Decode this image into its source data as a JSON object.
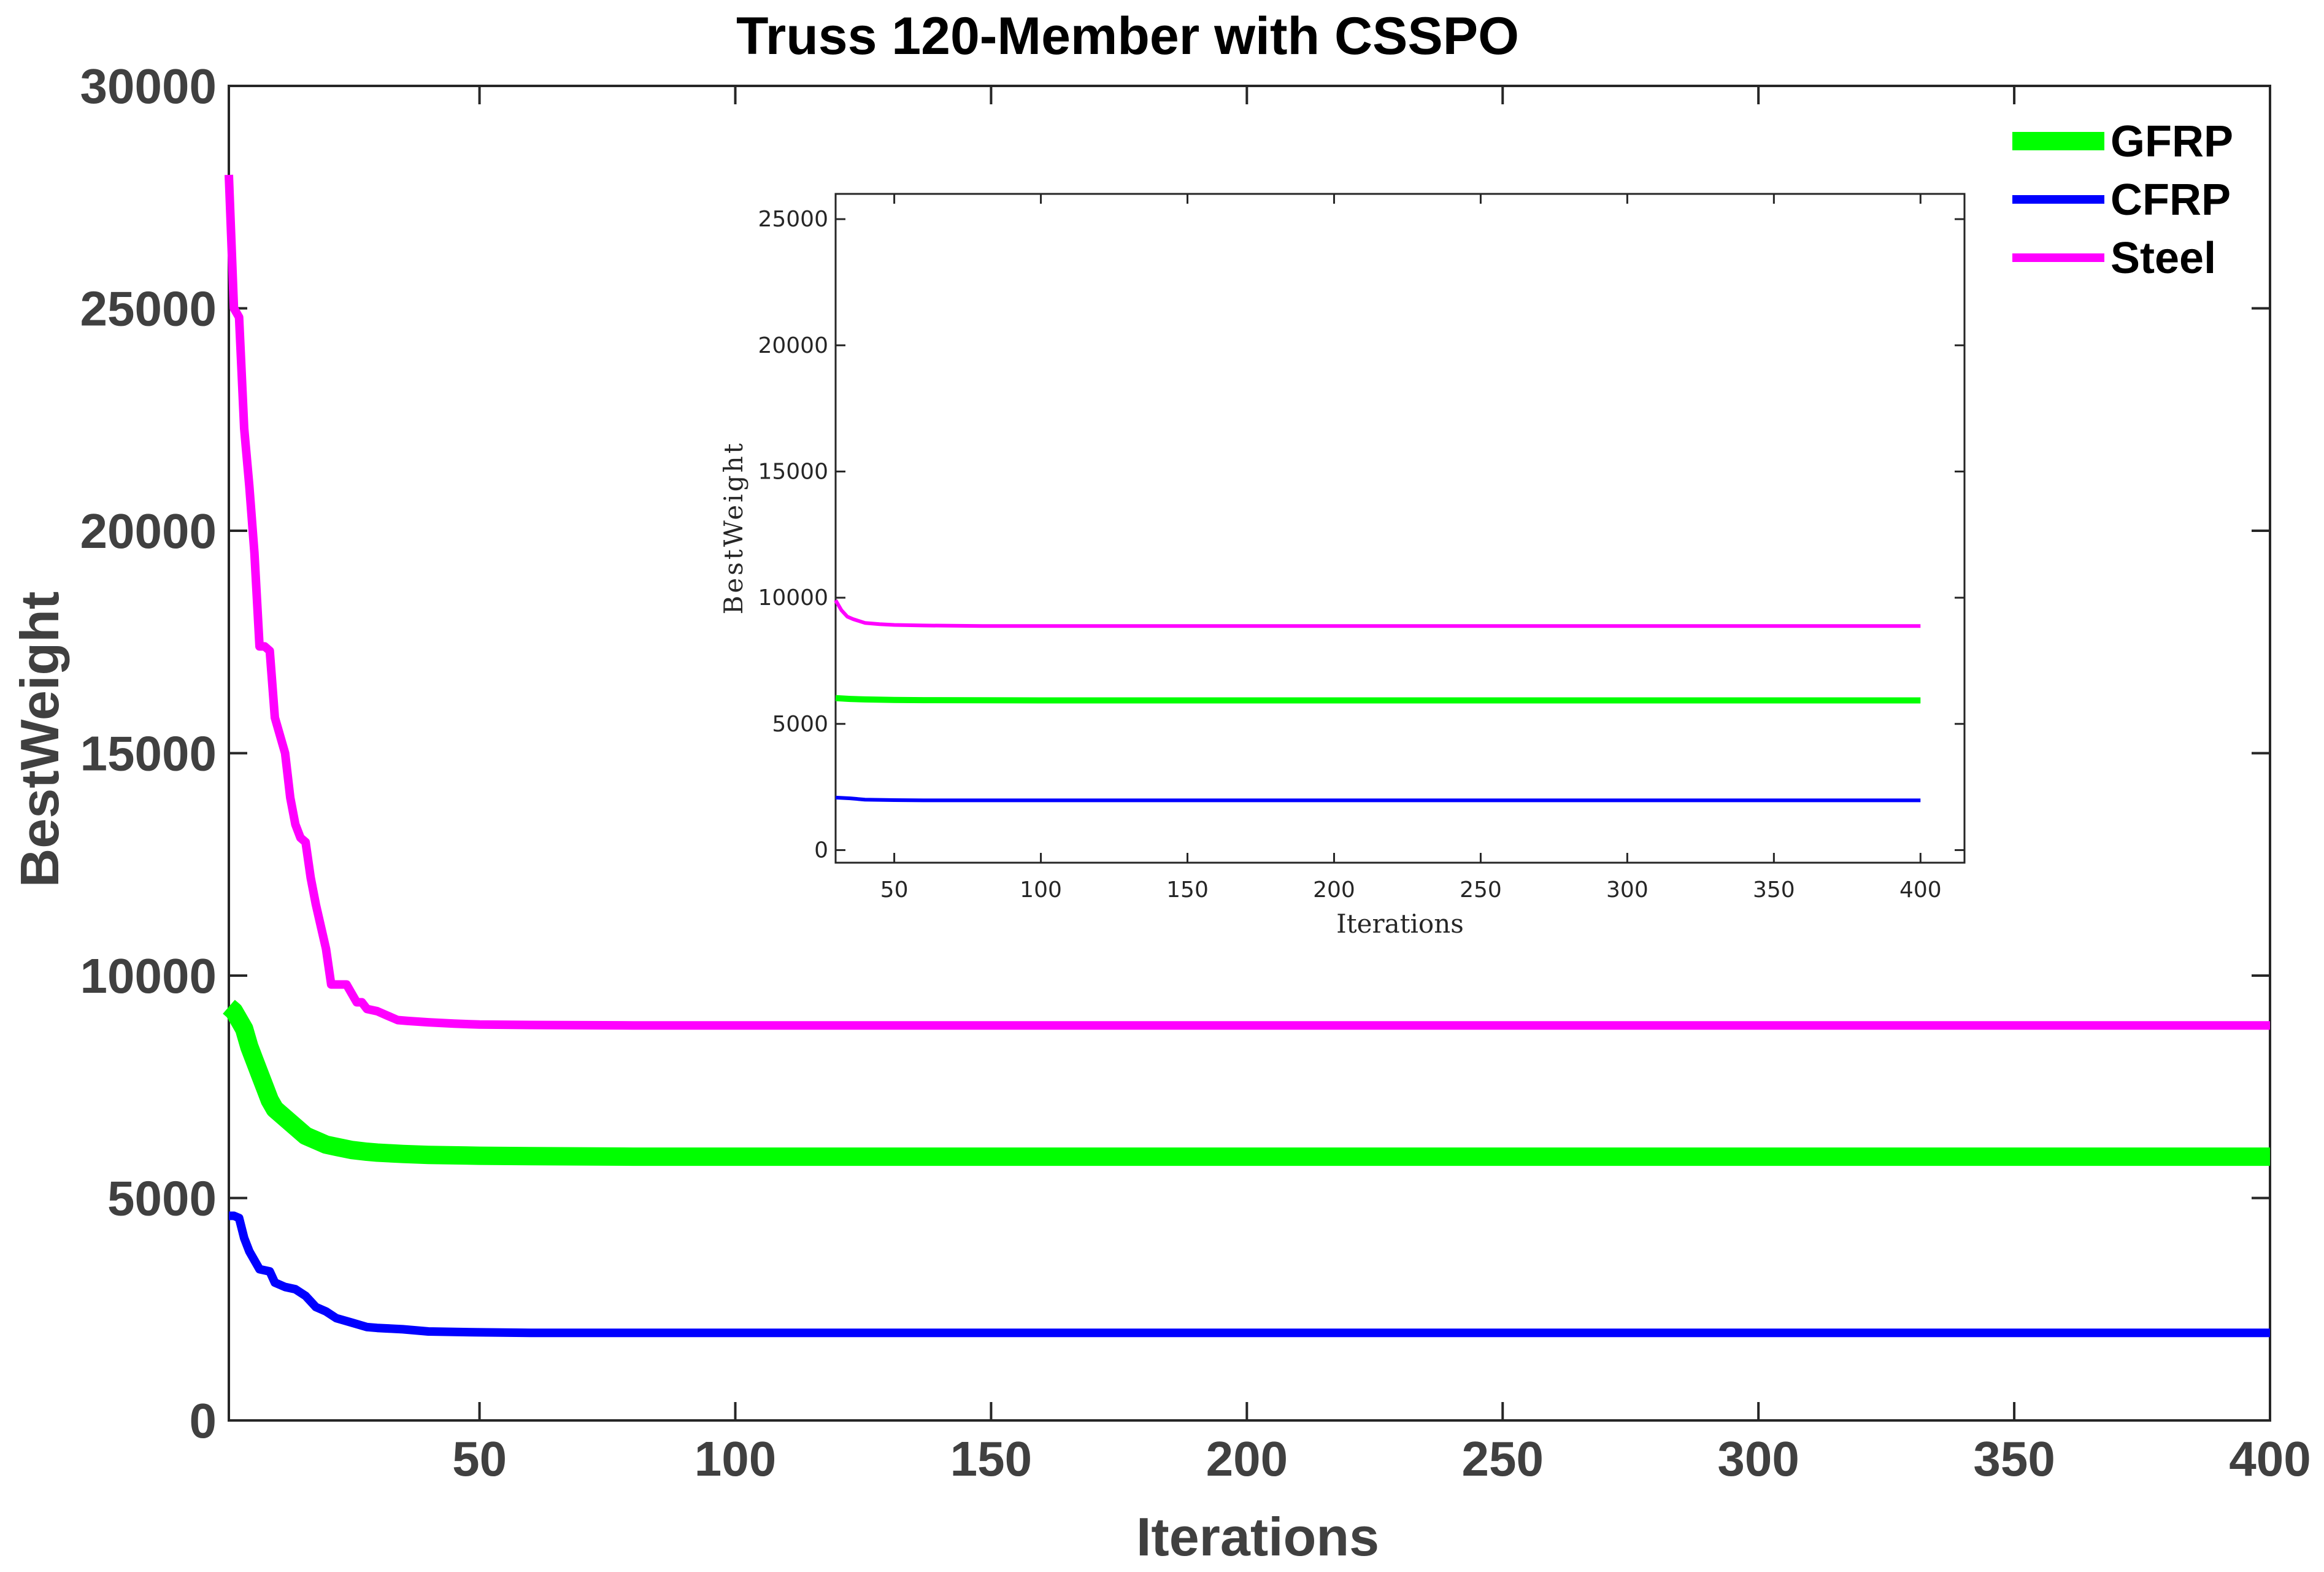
{
  "chart_data": [
    {
      "type": "line",
      "title": "Truss 120-Member with CSSPO",
      "xlabel": "Iterations",
      "ylabel": "BestWeight",
      "xlim": [
        1,
        400
      ],
      "ylim": [
        0,
        30000
      ],
      "xticks": [
        50,
        100,
        150,
        200,
        250,
        300,
        350,
        400
      ],
      "yticks": [
        0,
        5000,
        10000,
        15000,
        20000,
        25000,
        30000
      ],
      "grid": false,
      "legend_position": "top-right",
      "series": [
        {
          "name": "GFRP",
          "color": "#00ff00",
          "x": [
            1,
            2,
            3,
            4,
            5,
            6,
            7,
            8,
            9,
            10,
            12,
            14,
            16,
            18,
            20,
            22,
            25,
            28,
            30,
            35,
            40,
            50,
            60,
            80,
            100,
            150,
            200,
            250,
            300,
            350,
            400
          ],
          "y": [
            9300,
            9200,
            9000,
            8800,
            8400,
            8100,
            7800,
            7500,
            7200,
            7000,
            6800,
            6600,
            6400,
            6300,
            6200,
            6150,
            6080,
            6040,
            6020,
            5990,
            5970,
            5950,
            5940,
            5930,
            5930,
            5930,
            5930,
            5930,
            5930,
            5930,
            5930
          ]
        },
        {
          "name": "CFRP",
          "color": "#0000ff",
          "x": [
            1,
            2,
            3,
            4,
            5,
            6,
            7,
            9,
            10,
            12,
            14,
            16,
            18,
            20,
            22,
            25,
            28,
            30,
            35,
            40,
            50,
            60,
            100,
            150,
            200,
            250,
            300,
            350,
            400
          ],
          "y": [
            4600,
            4600,
            4550,
            4100,
            3800,
            3600,
            3400,
            3350,
            3100,
            3000,
            2950,
            2800,
            2550,
            2450,
            2300,
            2200,
            2100,
            2080,
            2050,
            2000,
            1980,
            1970,
            1970,
            1970,
            1970,
            1970,
            1970,
            1970,
            1970
          ]
        },
        {
          "name": "Steel",
          "color": "#ff00ff",
          "x": [
            1,
            2,
            3,
            4,
            5,
            6,
            7,
            8,
            9,
            10,
            12,
            13,
            14,
            15,
            16,
            17,
            18,
            20,
            21,
            22,
            23,
            24,
            25,
            26,
            27,
            28,
            30,
            32,
            34,
            36,
            40,
            45,
            50,
            60,
            80,
            100,
            150,
            200,
            250,
            300,
            350,
            400
          ],
          "y": [
            28000,
            25000,
            24800,
            22300,
            21000,
            19500,
            17400,
            17400,
            17300,
            15800,
            15000,
            14000,
            13400,
            13100,
            13000,
            12200,
            11600,
            10600,
            9800,
            9800,
            9800,
            9800,
            9600,
            9400,
            9400,
            9250,
            9200,
            9100,
            9000,
            8980,
            8950,
            8920,
            8900,
            8890,
            8880,
            8880,
            8880,
            8880,
            8880,
            8880,
            8880,
            8880
          ]
        }
      ]
    },
    {
      "type": "line",
      "xlabel": "Iterations",
      "ylabel": "BestWeight",
      "xlim": [
        30,
        415
      ],
      "ylim": [
        -500,
        26000
      ],
      "xticks": [
        50,
        100,
        150,
        200,
        250,
        300,
        350,
        400
      ],
      "yticks": [
        0,
        5000,
        10000,
        15000,
        20000,
        25000
      ],
      "grid": false,
      "series": [
        {
          "color": "#00ff00",
          "x": [
            30,
            35,
            40,
            50,
            60,
            100,
            150,
            200,
            250,
            300,
            350,
            400
          ],
          "y": [
            6020,
            5990,
            5970,
            5950,
            5940,
            5930,
            5930,
            5930,
            5930,
            5930,
            5930,
            5930
          ]
        },
        {
          "color": "#0000ff",
          "x": [
            30,
            35,
            40,
            50,
            60,
            100,
            150,
            200,
            250,
            300,
            350,
            400
          ],
          "y": [
            2080,
            2050,
            2000,
            1980,
            1970,
            1970,
            1970,
            1970,
            1970,
            1970,
            1970,
            1970
          ]
        },
        {
          "color": "#ff00ff",
          "x": [
            30,
            32,
            34,
            36,
            40,
            45,
            50,
            60,
            80,
            100,
            150,
            200,
            250,
            300,
            350,
            400
          ],
          "y": [
            9900,
            9500,
            9250,
            9150,
            9000,
            8950,
            8920,
            8900,
            8880,
            8880,
            8880,
            8880,
            8880,
            8880,
            8880,
            8880
          ]
        }
      ]
    }
  ]
}
